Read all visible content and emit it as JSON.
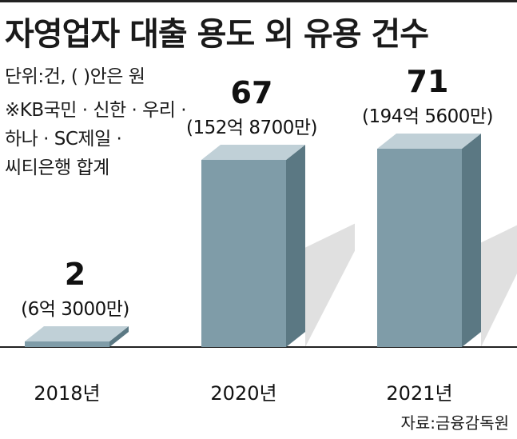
{
  "header": {
    "title": "자영업자 대출 용도 외 유용 건수",
    "unit_note": "단위:건, (   )안은 원",
    "bank_note_lines": [
      "※KB국민 · 신한 · 우리 ·",
      "하나 · SC제일 ·",
      "씨티은행 합계"
    ],
    "source": "자료:금융감독원"
  },
  "colors": {
    "bar_front": "#7f9ca8",
    "bar_side": "#5b7883",
    "bar_top": "#c0d0d7",
    "shadow": "#d8d8d8",
    "baseline": "#222222"
  },
  "chart_data": {
    "type": "bar",
    "categories": [
      "2018년",
      "2020년",
      "2021년"
    ],
    "values": [
      2,
      67,
      71
    ],
    "amounts": [
      "(6억 3000만)",
      "(152억 8700만)",
      "(194억 5600만)"
    ],
    "title": "자영업자 대출 용도 외 유용 건수",
    "xlabel": "",
    "ylabel": "",
    "ylim": [
      0,
      71
    ],
    "grid": false,
    "legend": "none"
  }
}
